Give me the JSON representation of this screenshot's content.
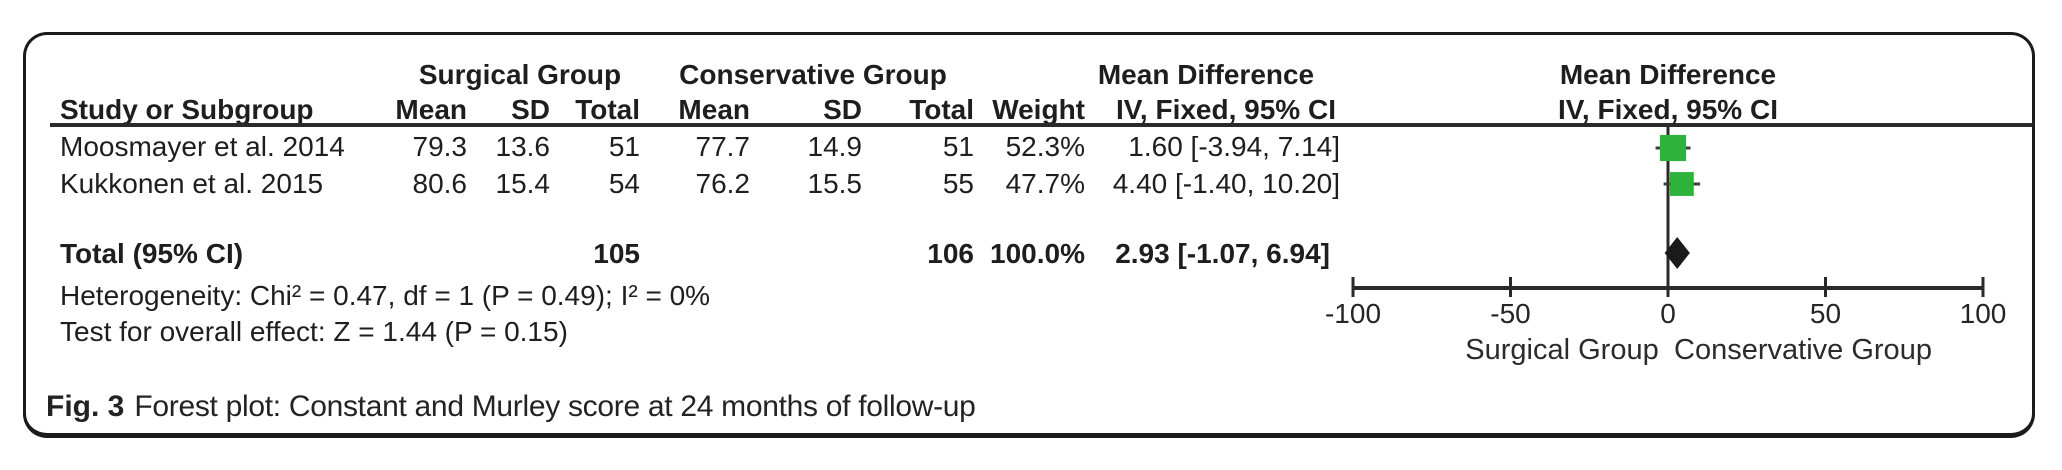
{
  "colors": {
    "marker_green": "#2db33a",
    "diamond_black": "#1a1a1a",
    "line_dark": "#2a2a2a",
    "whisker": "#3d3d3d"
  },
  "table": {
    "group_headers": {
      "surgical": "Surgical Group",
      "conservative": "Conservative Group",
      "mean_difference_left": "Mean Difference",
      "mean_difference_right": "Mean Difference"
    },
    "column_headers": {
      "study": "Study or Subgroup",
      "s_mean": "Mean",
      "s_sd": "SD",
      "s_total": "Total",
      "c_mean": "Mean",
      "c_sd": "SD",
      "c_total": "Total",
      "weight": "Weight",
      "ci": "IV, Fixed, 95% CI",
      "ci_right": "IV, Fixed, 95% CI"
    },
    "rows": [
      {
        "study": "Moosmayer et al. 2014",
        "s_mean": "79.3",
        "s_sd": "13.6",
        "s_total": "51",
        "c_mean": "77.7",
        "c_sd": "14.9",
        "c_total": "51",
        "weight": "52.3%",
        "ci": "1.60 [-3.94, 7.14]"
      },
      {
        "study": "Kukkonen et al. 2015",
        "s_mean": "80.6",
        "s_sd": "15.4",
        "s_total": "54",
        "c_mean": "76.2",
        "c_sd": "15.5",
        "c_total": "55",
        "weight": "47.7%",
        "ci": "4.40 [-1.40, 10.20]"
      }
    ],
    "total_row": {
      "label": "Total (95% CI)",
      "s_total": "105",
      "c_total": "106",
      "weight": "100.0%",
      "ci": "2.93 [-1.07, 6.94]"
    },
    "heterogeneity": "Heterogeneity: Chi² = 0.47, df = 1 (P = 0.49); I² = 0%",
    "overall_effect": "Test for overall effect: Z = 1.44 (P = 0.15)"
  },
  "axis_labels": {
    "left": "Surgical Group",
    "right": "Conservative Group"
  },
  "caption": {
    "tag": "Fig. 3",
    "text": "Forest plot: Constant and Murley score at 24 months of follow-up"
  },
  "chart_data": {
    "type": "forest",
    "title": "Forest plot: Constant and Murley score at 24 months of follow-up",
    "effect_measure": "Mean Difference IV, Fixed, 95% CI",
    "axis": {
      "min": -100,
      "max": 100,
      "ticks": [
        -100,
        -50,
        0,
        50,
        100
      ],
      "zero_line": 0,
      "left_label": "Surgical Group",
      "right_label": "Conservative Group"
    },
    "studies": [
      {
        "name": "Moosmayer et al. 2014",
        "md": 1.6,
        "ci_low": -3.94,
        "ci_high": 7.14,
        "weight_pct": 52.3,
        "surgical": {
          "mean": 79.3,
          "sd": 13.6,
          "total": 51
        },
        "conservative": {
          "mean": 77.7,
          "sd": 14.9,
          "total": 51
        }
      },
      {
        "name": "Kukkonen et al. 2015",
        "md": 4.4,
        "ci_low": -1.4,
        "ci_high": 10.2,
        "weight_pct": 47.7,
        "surgical": {
          "mean": 80.6,
          "sd": 15.4,
          "total": 54
        },
        "conservative": {
          "mean": 76.2,
          "sd": 15.5,
          "total": 55
        }
      }
    ],
    "total": {
      "md": 2.93,
      "ci_low": -1.07,
      "ci_high": 6.94,
      "weight_pct": 100.0,
      "surgical_total": 105,
      "conservative_total": 106
    },
    "heterogeneity": {
      "chi2": 0.47,
      "df": 1,
      "p": 0.49,
      "i2_pct": 0
    },
    "overall_effect": {
      "z": 1.44,
      "p": 0.15
    }
  }
}
